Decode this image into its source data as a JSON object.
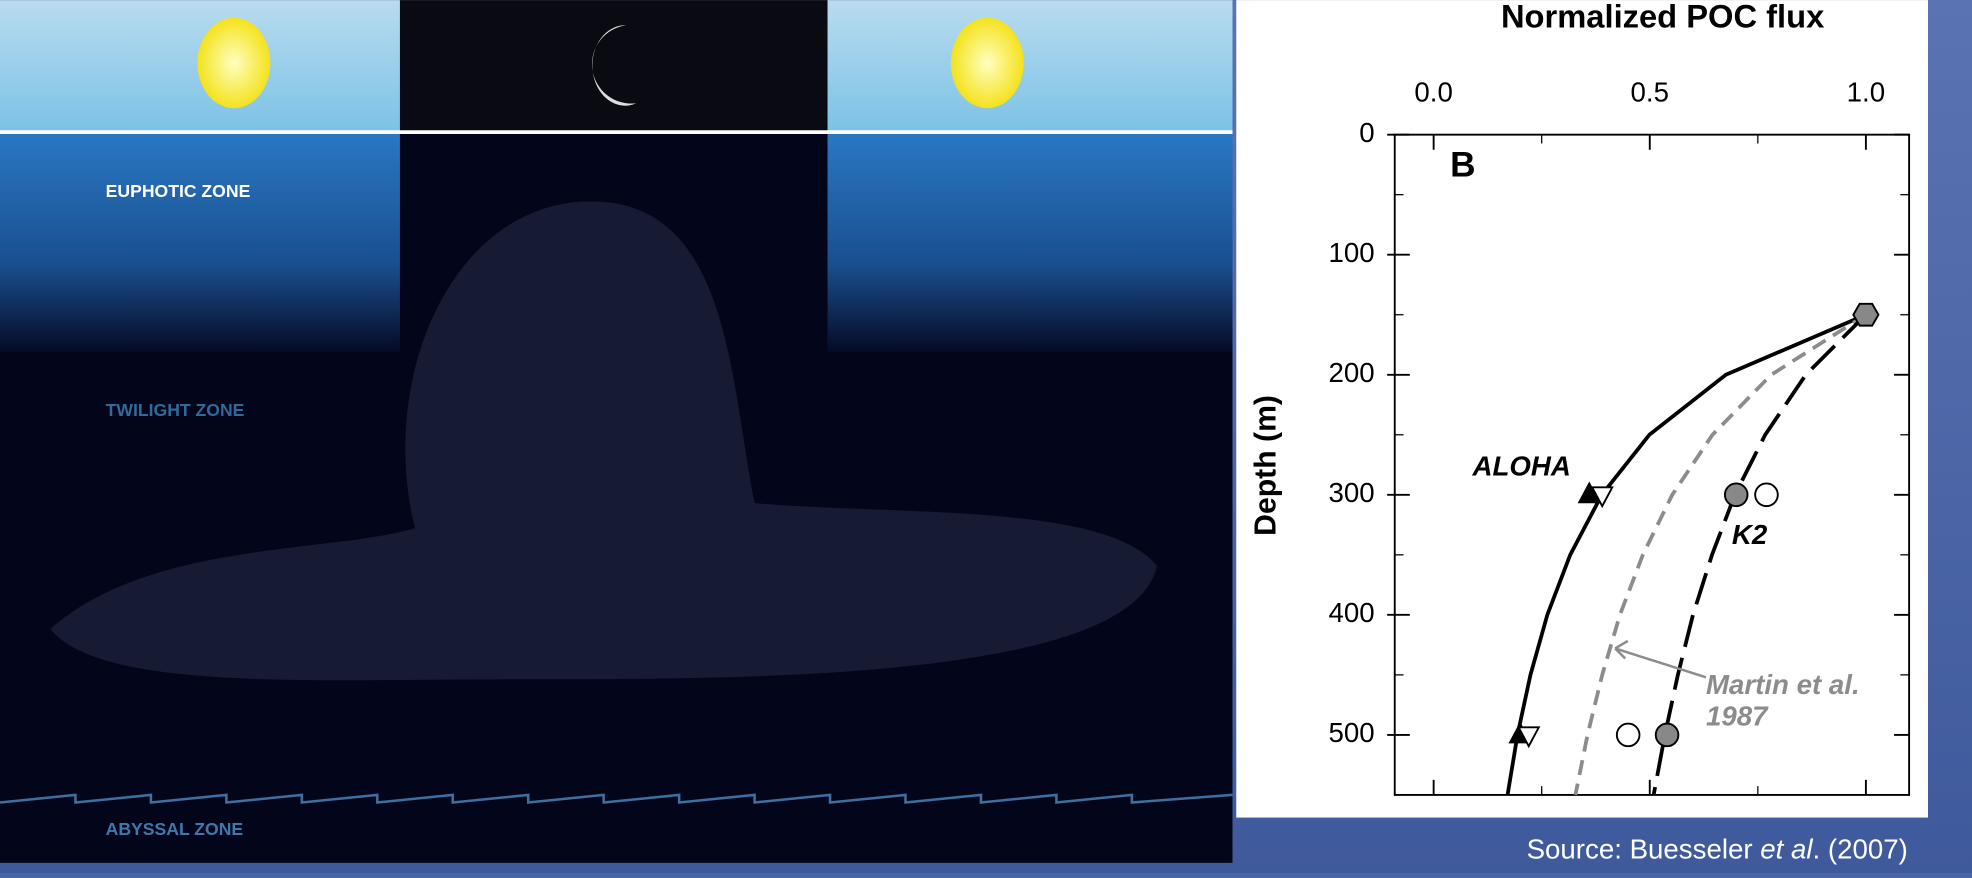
{
  "illustration": {
    "zones": [
      "EUPHOTIC ZONE",
      "TWILIGHT ZONE",
      "ABYSSAL ZONE"
    ]
  },
  "source": {
    "before": "Source: Buesseler ",
    "italic": "et al",
    "after": ". (2007)"
  },
  "chart_data": {
    "type": "line",
    "title": "Normalized POC flux",
    "y_label": "Depth (m)",
    "panel_label": "B",
    "xlim": [
      -0.09,
      1.1
    ],
    "xticks": [
      {
        "value": 0,
        "label": "0.0"
      },
      0.5,
      {
        "value": 1,
        "label": "1.0"
      }
    ],
    "xticks_minor": [
      0.25,
      0.75
    ],
    "ylim": [
      0,
      550
    ],
    "yticks": [
      0,
      100,
      200,
      300,
      400,
      500
    ],
    "yticks_minor": [
      50,
      150,
      250,
      350,
      450
    ],
    "y_inverted": true,
    "x_axis_top": true,
    "series": [
      {
        "color": "#000000",
        "dash": "solid",
        "y": [
          150,
          200,
          250,
          300,
          350,
          400,
          450,
          500,
          550
        ],
        "x": [
          1,
          0.676,
          0.499,
          0.389,
          0.316,
          0.263,
          0.224,
          0.194,
          0.171
        ]
      },
      {
        "color": "#8c8c8c",
        "dash": "short",
        "y": [
          150,
          200,
          250,
          300,
          350,
          400,
          450,
          500,
          550
        ],
        "x": [
          1,
          0.781,
          0.645,
          0.552,
          0.484,
          0.431,
          0.39,
          0.356,
          0.328
        ]
      },
      {
        "color": "#000000",
        "dash": "long",
        "y": [
          150,
          200,
          250,
          300,
          350,
          400,
          450,
          500,
          550
        ],
        "x": [
          1,
          0.861,
          0.767,
          0.697,
          0.644,
          0.6,
          0.565,
          0.535,
          0.509
        ]
      }
    ],
    "points": [
      {
        "marker": "triangle-up",
        "fill": "#000000",
        "x": [
          0.36,
          0.2
        ],
        "y": [
          300,
          500
        ]
      },
      {
        "marker": "triangle-down",
        "fill": "#ffffff",
        "x": [
          0.39,
          0.22
        ],
        "y": [
          300,
          500
        ]
      },
      {
        "marker": "circle",
        "fill": "#888888",
        "x": [
          0.7,
          0.54
        ],
        "y": [
          300,
          500
        ]
      },
      {
        "marker": "circle",
        "fill": "#ffffff",
        "x": [
          0.77,
          0.45
        ],
        "y": [
          300,
          500
        ]
      },
      {
        "marker": "hexagon",
        "fill": "#888888",
        "x": [
          1
        ],
        "y": [
          150
        ]
      }
    ],
    "annotations": [
      {
        "text": "ALOHA",
        "x": 0.09,
        "y": 278,
        "color": "#000000"
      },
      {
        "text": "K2",
        "x": 0.69,
        "y": 335,
        "color": "#000000"
      },
      {
        "text": "Martin et al.",
        "x": 0.63,
        "y": 460,
        "color": "#8c8c8c"
      },
      {
        "text": "1987",
        "x": 0.63,
        "y": 486,
        "color": "#8c8c8c"
      }
    ]
  }
}
